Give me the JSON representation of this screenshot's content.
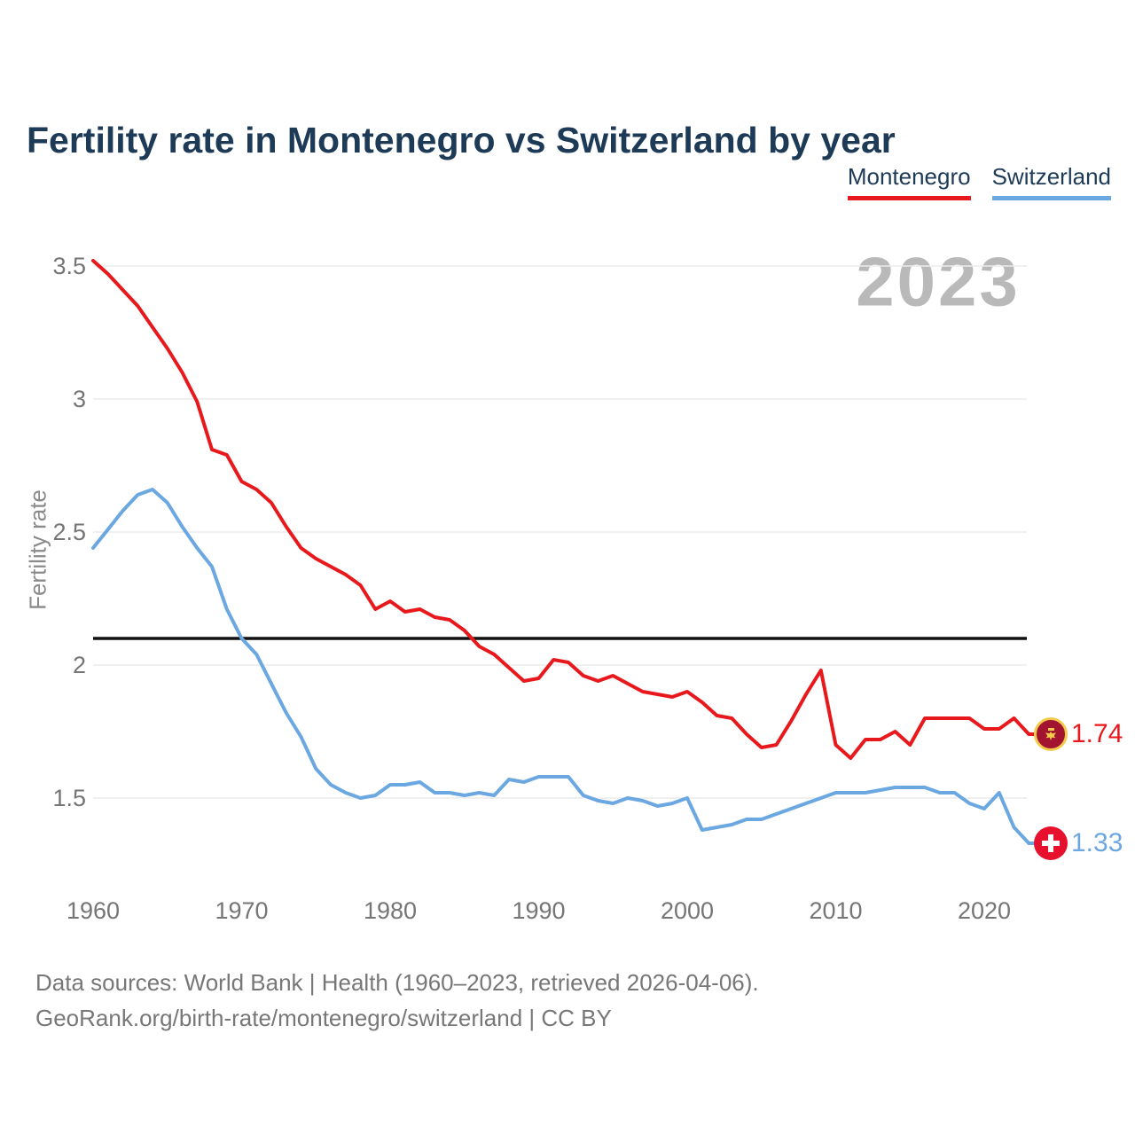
{
  "title": "Fertility rate in Montenegro vs Switzerland by year",
  "legend": [
    {
      "id": "montenegro",
      "label": "Montenegro"
    },
    {
      "id": "switzerland",
      "label": "Switzerland"
    }
  ],
  "watermark": "2023",
  "footer": {
    "line1": "Data sources: World Bank | Health (1960–2023, retrieved 2026-04-06).",
    "line2": "GeoRank.org/birth-rate/montenegro/switzerland | CC BY"
  },
  "colors": {
    "montenegro": "#e8191c",
    "switzerland": "#6ba7e0",
    "title": "#1d3a57",
    "axis_text": "#757575",
    "grid": "#ececec",
    "reference_line": "#111111",
    "watermark": "#b9b9b9",
    "footer": "#777777",
    "flag_montenegro_bg": "#a2142f",
    "flag_montenegro_ring": "#f3cc4e",
    "flag_switzerland_bg": "#e8112d"
  },
  "chart_data": {
    "type": "line",
    "title": "Fertility rate in Montenegro vs Switzerland by year",
    "xlabel": "",
    "ylabel": "Fertility rate",
    "x_start": 1960,
    "x_end": 2023,
    "ylim": [
      1.5,
      3.5
    ],
    "grid": "horizontal-only",
    "legend_position": "top-right",
    "reference_line": 2.1,
    "y_ticks": [
      {
        "label": "3.5",
        "value": 3.5
      },
      {
        "label": "3",
        "value": 3.0
      },
      {
        "label": "2.5",
        "value": 2.5
      },
      {
        "label": "2",
        "value": 2.0
      },
      {
        "label": "1.5",
        "value": 1.5
      }
    ],
    "x_ticks": [
      {
        "label": "1960",
        "value": 1960
      },
      {
        "label": "1970",
        "value": 1970
      },
      {
        "label": "1980",
        "value": 1980
      },
      {
        "label": "1990",
        "value": 1990
      },
      {
        "label": "2000",
        "value": 2000
      },
      {
        "label": "2010",
        "value": 2010
      },
      {
        "label": "2020",
        "value": 2020
      }
    ],
    "series": [
      {
        "id": "montenegro",
        "name": "Montenegro",
        "end_label": "1.74",
        "values": [
          3.52,
          3.47,
          3.41,
          3.35,
          3.27,
          3.19,
          3.1,
          2.99,
          2.81,
          2.79,
          2.69,
          2.66,
          2.61,
          2.52,
          2.44,
          2.4,
          2.37,
          2.34,
          2.3,
          2.21,
          2.24,
          2.2,
          2.21,
          2.18,
          2.17,
          2.13,
          2.07,
          2.04,
          1.99,
          1.94,
          1.95,
          2.02,
          2.01,
          1.96,
          1.94,
          1.96,
          1.93,
          1.9,
          1.89,
          1.88,
          1.9,
          1.86,
          1.81,
          1.8,
          1.74,
          1.69,
          1.7,
          1.79,
          1.89,
          1.98,
          1.7,
          1.65,
          1.72,
          1.72,
          1.75,
          1.7,
          1.8,
          1.8,
          1.8,
          1.8,
          1.76,
          1.76,
          1.8,
          1.74
        ]
      },
      {
        "id": "switzerland",
        "name": "Switzerland",
        "end_label": "1.33",
        "values": [
          2.44,
          2.51,
          2.58,
          2.64,
          2.66,
          2.61,
          2.52,
          2.44,
          2.37,
          2.21,
          2.1,
          2.04,
          1.93,
          1.82,
          1.73,
          1.61,
          1.55,
          1.52,
          1.5,
          1.51,
          1.55,
          1.55,
          1.56,
          1.52,
          1.52,
          1.51,
          1.52,
          1.51,
          1.57,
          1.56,
          1.58,
          1.58,
          1.58,
          1.51,
          1.49,
          1.48,
          1.5,
          1.49,
          1.47,
          1.48,
          1.5,
          1.38,
          1.39,
          1.4,
          1.42,
          1.42,
          1.44,
          1.46,
          1.48,
          1.5,
          1.52,
          1.52,
          1.52,
          1.53,
          1.54,
          1.54,
          1.54,
          1.52,
          1.52,
          1.48,
          1.46,
          1.52,
          1.39,
          1.33
        ]
      }
    ]
  }
}
